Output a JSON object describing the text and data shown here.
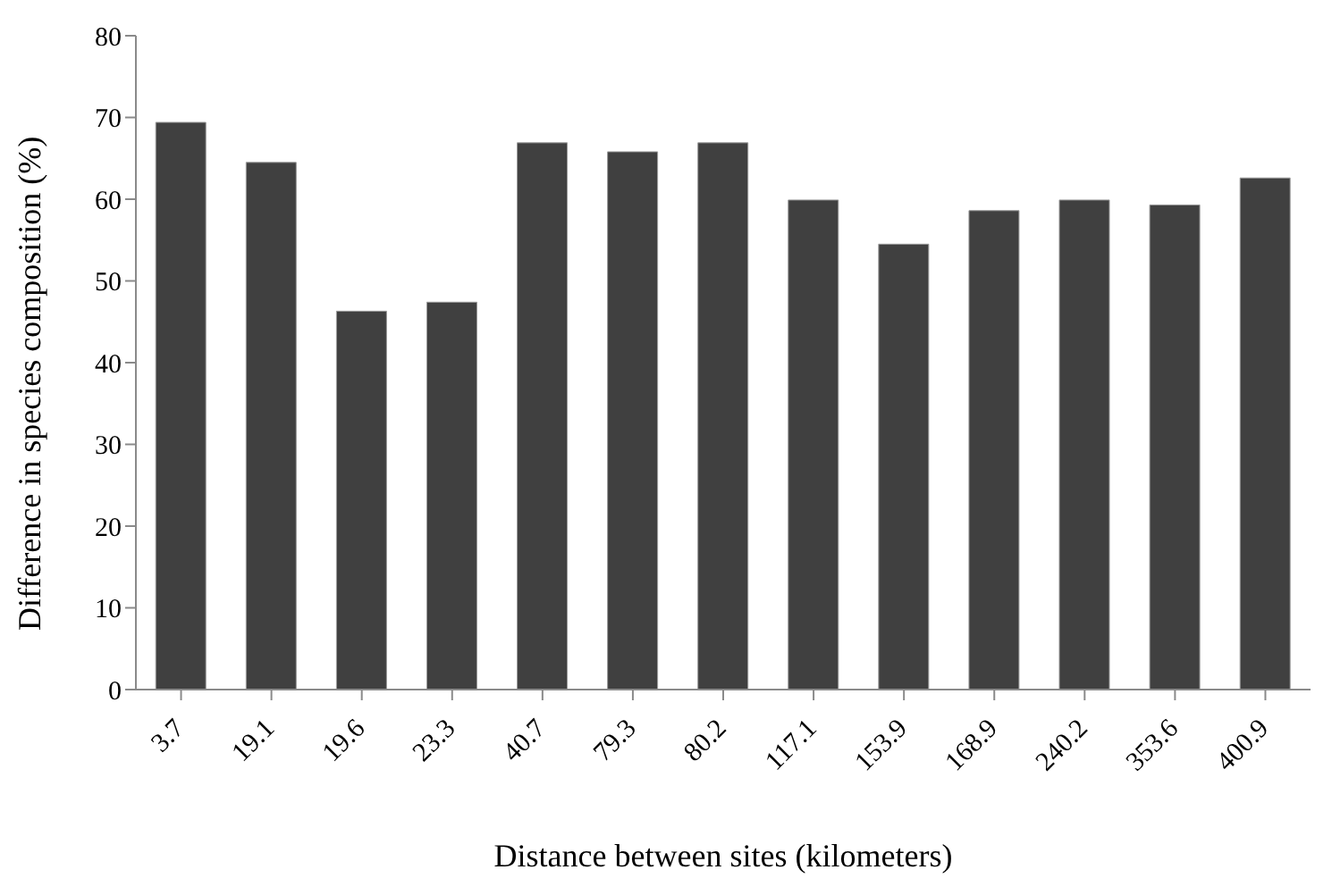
{
  "chart_data": {
    "type": "bar",
    "xlabel": "Distance between sites (kilometers)",
    "ylabel": "Difference in species composition (%)",
    "categories": [
      "3.7",
      "19.1",
      "19.6",
      "23.3",
      "40.7",
      "79.3",
      "80.2",
      "117.1",
      "153.9",
      "168.9",
      "240.2",
      "353.6",
      "400.9"
    ],
    "values": [
      69.4,
      64.5,
      46.3,
      47.4,
      66.9,
      65.8,
      66.9,
      59.9,
      54.5,
      58.6,
      59.9,
      59.3,
      62.6
    ],
    "color": "#404040",
    "ylim": [
      0,
      80
    ],
    "yticks": [
      0,
      10,
      20,
      30,
      40,
      50,
      60,
      70,
      80
    ],
    "legend": false
  }
}
